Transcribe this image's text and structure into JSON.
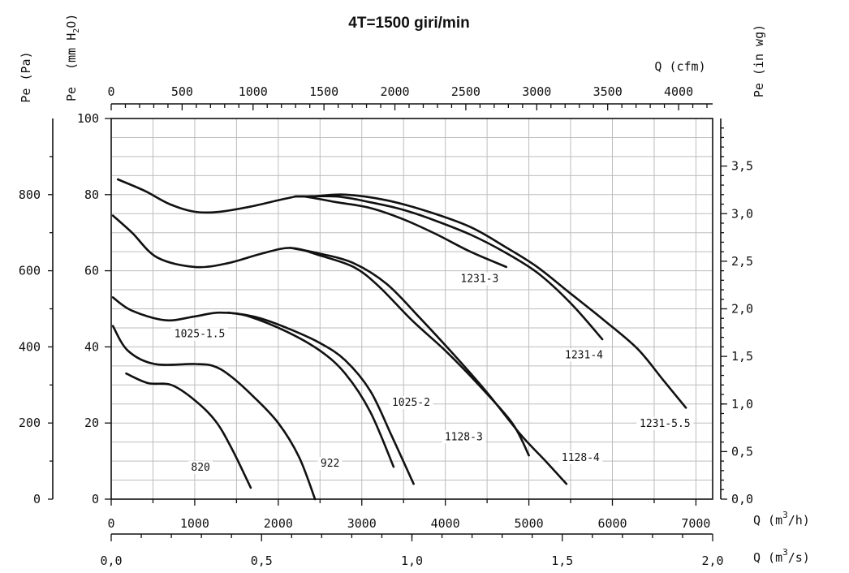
{
  "chart_data": {
    "type": "line",
    "title": "4T=1500 giri/min",
    "x_axes": {
      "bottom_primary": {
        "label": "Q (m³/h)",
        "label_base": "Q (m",
        "label_sup": "3",
        "label_end": "/h)",
        "range": [
          0,
          7200
        ],
        "ticks": [
          0,
          1000,
          2000,
          3000,
          4000,
          5000,
          6000,
          7000
        ]
      },
      "bottom_secondary": {
        "label": "Q (m³/s)",
        "label_base": "Q (m",
        "label_sup": "3",
        "label_end": "/s)",
        "range": [
          0,
          2.0
        ],
        "ticks": [
          "0,0",
          "0,5",
          "1,0",
          "1,5",
          "2,0"
        ]
      },
      "top": {
        "label": "Q (cfm)",
        "range": [
          0,
          4240
        ],
        "ticks": [
          0,
          500,
          1000,
          1500,
          2000,
          2500,
          3000,
          3500,
          4000
        ]
      }
    },
    "y_axes": {
      "left_pa": {
        "label": "Pe (Pa)",
        "range": [
          0,
          1000
        ],
        "ticks": [
          0,
          200,
          400,
          600,
          800
        ]
      },
      "left_mmh2o": {
        "label": "Pe (mm H₂O)",
        "label_pe": "Pe",
        "label_mm": "(mm H",
        "label_sub": "2",
        "label_o": "O)",
        "range": [
          0,
          100
        ],
        "ticks": [
          0,
          20,
          40,
          60,
          80,
          100
        ]
      },
      "right_inwg": {
        "label": "Pe (in wg)",
        "range": [
          0,
          4.0
        ],
        "ticks": [
          "0,0",
          "0,5",
          "1,0",
          "1,5",
          "2,0",
          "2,5",
          "3,0",
          "3,5"
        ]
      }
    },
    "grid": true,
    "series": [
      {
        "name": "820",
        "label_at": [
          1070,
          7.5
        ],
        "points": [
          [
            180,
            33
          ],
          [
            440,
            30.5
          ],
          [
            720,
            30
          ],
          [
            1000,
            26
          ],
          [
            1250,
            20.5
          ],
          [
            1450,
            13
          ],
          [
            1670,
            3
          ]
        ]
      },
      {
        "name": "922",
        "label_at": [
          2620,
          8.5
        ],
        "points": [
          [
            20,
            45.5
          ],
          [
            200,
            39
          ],
          [
            520,
            35.5
          ],
          [
            1000,
            35.5
          ],
          [
            1220,
            35
          ],
          [
            1420,
            32.5
          ],
          [
            1700,
            27
          ],
          [
            2000,
            20
          ],
          [
            2250,
            11
          ],
          [
            2440,
            0
          ]
        ]
      },
      {
        "name": "1025-1.5",
        "label_at": [
          1060,
          42.5
        ],
        "points": [
          [
            20,
            53
          ],
          [
            250,
            49.5
          ],
          [
            650,
            47
          ],
          [
            1000,
            48
          ],
          [
            1300,
            49
          ],
          [
            1700,
            48
          ],
          [
            2100,
            45
          ],
          [
            2500,
            41
          ],
          [
            2800,
            36.5
          ],
          [
            3100,
            28.5
          ],
          [
            3350,
            17
          ],
          [
            3620,
            4
          ]
        ]
      },
      {
        "name": "1025-2",
        "label_at": [
          3590,
          24.5
        ],
        "points": [
          [
            1400,
            49
          ],
          [
            1650,
            48
          ],
          [
            2100,
            44
          ],
          [
            2500,
            39
          ],
          [
            2800,
            33
          ],
          [
            3100,
            23
          ],
          [
            3380,
            8.5
          ]
        ]
      },
      {
        "name": "1128-3",
        "label_at": [
          4220,
          15.5
        ],
        "points": [
          [
            20,
            74.5
          ],
          [
            250,
            70
          ],
          [
            550,
            63.5
          ],
          [
            1000,
            61
          ],
          [
            1400,
            62
          ],
          [
            1800,
            64.5
          ],
          [
            2150,
            66
          ],
          [
            2500,
            64
          ],
          [
            2900,
            61
          ],
          [
            3200,
            56
          ],
          [
            3600,
            47
          ],
          [
            4000,
            39
          ],
          [
            4400,
            30
          ],
          [
            4800,
            20
          ],
          [
            5000,
            11.5
          ]
        ]
      },
      {
        "name": "1128-4",
        "label_at": [
          5620,
          10
        ],
        "points": [
          [
            2150,
            66
          ],
          [
            2500,
            64.5
          ],
          [
            2900,
            62
          ],
          [
            3300,
            56.5
          ],
          [
            3700,
            47.5
          ],
          [
            4100,
            38
          ],
          [
            4500,
            28
          ],
          [
            4900,
            17
          ],
          [
            5200,
            10
          ],
          [
            5450,
            4
          ]
        ]
      },
      {
        "name": "1231-3",
        "label_at": [
          4410,
          57
        ],
        "points": [
          [
            80,
            84
          ],
          [
            400,
            81
          ],
          [
            700,
            77.5
          ],
          [
            1000,
            75.5
          ],
          [
            1300,
            75.5
          ],
          [
            1700,
            77
          ],
          [
            2100,
            79
          ],
          [
            2300,
            79.5
          ],
          [
            2700,
            78
          ],
          [
            3100,
            76.5
          ],
          [
            3500,
            73.5
          ],
          [
            3900,
            69.5
          ],
          [
            4300,
            65
          ],
          [
            4730,
            61
          ]
        ]
      },
      {
        "name": "1231-4",
        "label_at": [
          5660,
          37
        ],
        "points": [
          [
            2200,
            79.5
          ],
          [
            2700,
            79.5
          ],
          [
            3100,
            78
          ],
          [
            3500,
            76
          ],
          [
            3900,
            73
          ],
          [
            4300,
            69.5
          ],
          [
            4700,
            65
          ],
          [
            5100,
            59.5
          ],
          [
            5500,
            51.5
          ],
          [
            5880,
            42
          ]
        ]
      },
      {
        "name": "1231-5.5",
        "label_at": [
          6630,
          19
        ],
        "points": [
          [
            2400,
            79.5
          ],
          [
            2800,
            80
          ],
          [
            3300,
            78.5
          ],
          [
            3800,
            75.5
          ],
          [
            4300,
            71.5
          ],
          [
            4700,
            66.5
          ],
          [
            5100,
            61
          ],
          [
            5500,
            54
          ],
          [
            5900,
            47
          ],
          [
            6300,
            39.5
          ],
          [
            6600,
            31.5
          ],
          [
            6880,
            24
          ]
        ]
      }
    ]
  }
}
